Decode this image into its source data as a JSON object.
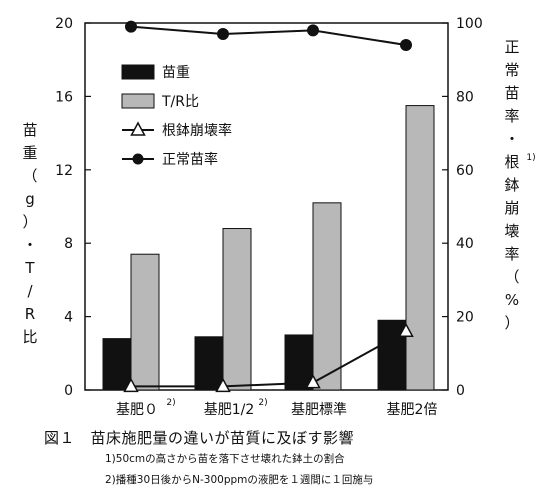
{
  "chart_data": {
    "type": "bar+line",
    "categories": [
      "基肥０",
      "基肥1/2",
      "基肥標準",
      "基肥2倍"
    ],
    "category_superscripts": [
      "2)",
      "2)",
      "",
      ""
    ],
    "y_left": {
      "label": "苗重（g）・T/R比",
      "ylim": [
        0,
        20
      ],
      "ticks": [
        0,
        4,
        8,
        12,
        16,
        20
      ]
    },
    "y_right": {
      "label": "正常苗率・根鉢崩壊率（%）",
      "superscript": "1)",
      "ylim": [
        0,
        100
      ],
      "ticks": [
        0,
        20,
        40,
        60,
        80,
        100
      ]
    },
    "series": [
      {
        "name": "苗重",
        "kind": "bar",
        "axis": "left",
        "color": "#111111",
        "values": [
          2.8,
          2.9,
          3.0,
          3.8
        ]
      },
      {
        "name": "T/R比",
        "kind": "bar",
        "axis": "left",
        "color": "#b8b8b8",
        "values": [
          7.4,
          8.8,
          10.2,
          15.5
        ]
      },
      {
        "name": "根鉢崩壊率",
        "kind": "line",
        "marker": "triangle-open",
        "axis": "right",
        "values": [
          1,
          1,
          2,
          16
        ]
      },
      {
        "name": "正常苗率",
        "kind": "line",
        "marker": "circle-filled",
        "axis": "right",
        "values": [
          99,
          97,
          98,
          94
        ]
      }
    ],
    "legend_position": "top-left",
    "grid": false
  },
  "caption": {
    "title": "図１　苗床施肥量の違いが苗質に及ぼす影響",
    "note1": "1)50cmの高さから苗を落下させ壊れた鉢土の割合",
    "note2": "2)播種30日後からN-300ppmの液肥を１週間に１回施与"
  }
}
